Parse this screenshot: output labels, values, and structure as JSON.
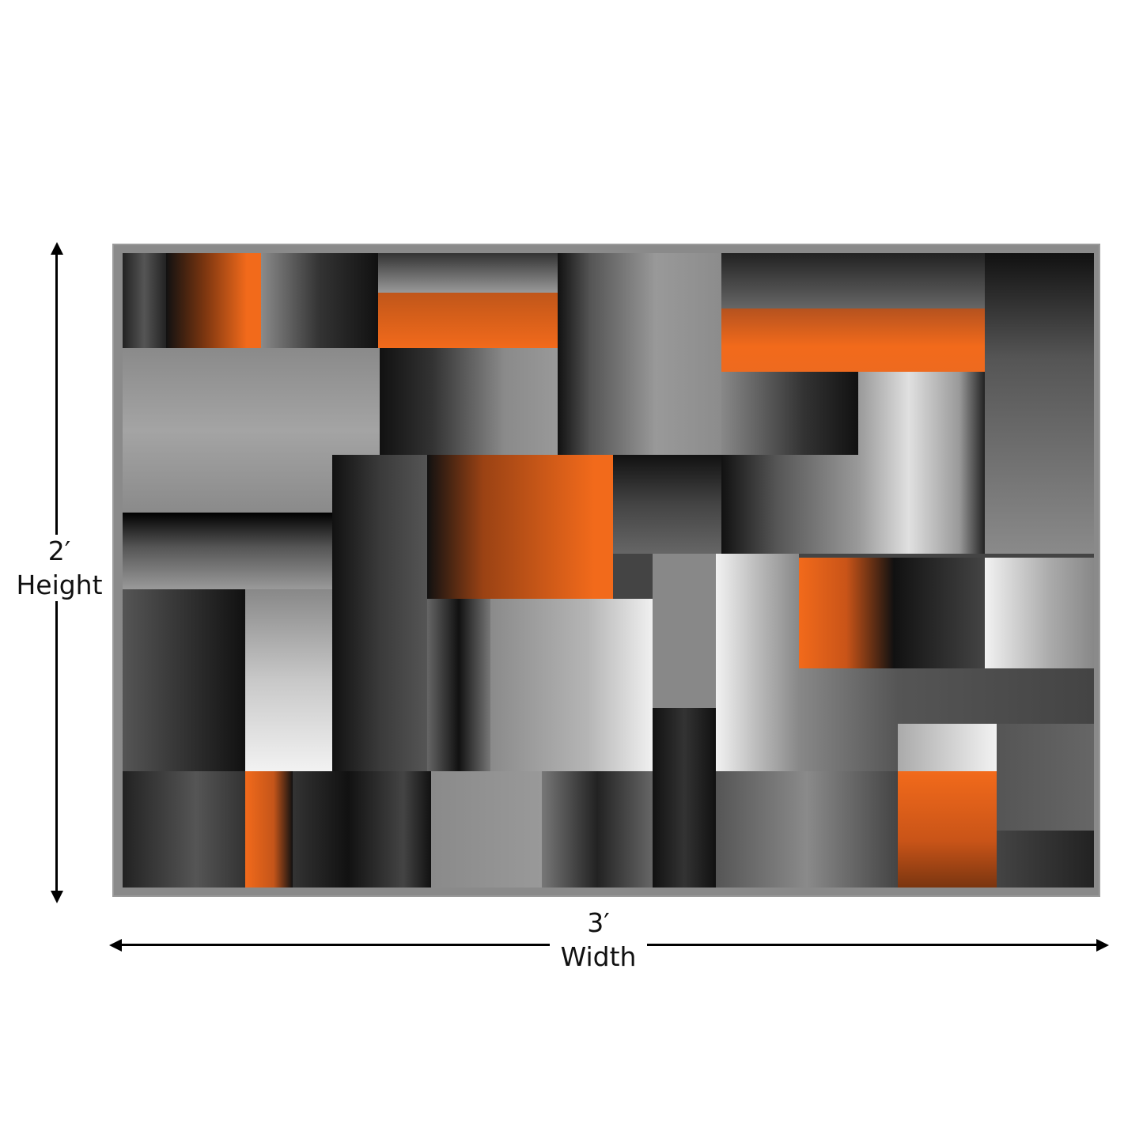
{
  "dimensions": {
    "height": {
      "value": "2′",
      "label": "Height"
    },
    "width": {
      "value": "3′",
      "label": "Width"
    }
  },
  "colors": {
    "orange": "#f26a1b",
    "black": "#111111",
    "dark_gray": "#4a4a4a",
    "gray": "#8c8c8c",
    "light_gray": "#c4c4c4",
    "white": "#f2f2f2",
    "border": "#8a8a8a"
  }
}
